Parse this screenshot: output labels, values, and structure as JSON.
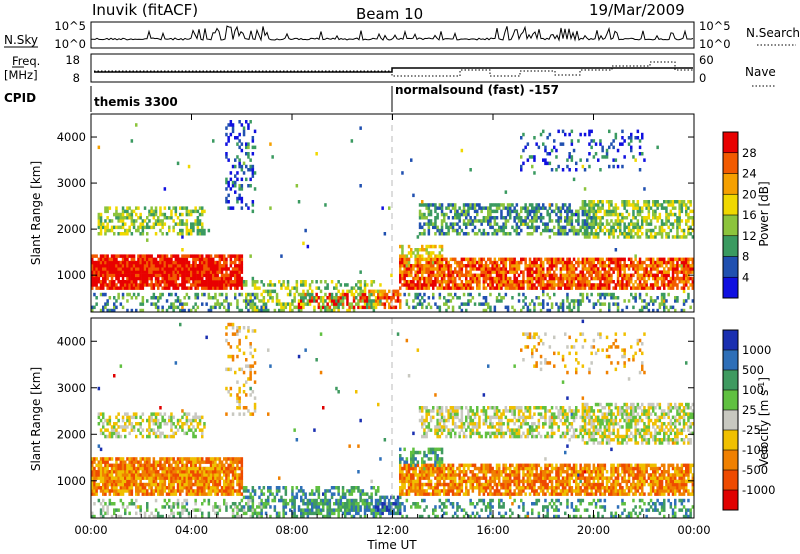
{
  "header": {
    "station": "Inuvik (fitACF)",
    "beam": "Beam 10",
    "date": "19/Mar/2009"
  },
  "noise_panel": {
    "left_label": "N.Sky",
    "left_ticks": [
      "10^5",
      "10^0"
    ],
    "right_ticks": [
      "10^5",
      "10^0"
    ],
    "right_label": "N.Search"
  },
  "freq_panel": {
    "left_label_1": "Freq.",
    "left_label_2": "[MHz]",
    "left_ticks": [
      "18",
      "8"
    ],
    "right_ticks": [
      "60",
      "0"
    ],
    "right_label": "Nave"
  },
  "cpid": {
    "label": "CPID",
    "program_1": "themis 3300",
    "program_2": "normalsound (fast) -157"
  },
  "chart_data": [
    {
      "type": "heatmap",
      "quantity": "Power",
      "ylabel": "Slant Range [km]",
      "ylim": [
        200,
        4500
      ],
      "yticks": [
        "4000",
        "3000",
        "2000",
        "1000"
      ],
      "colorbar_label": "Power [dB]",
      "colorbar_ticks": [
        "28",
        "24",
        "20",
        "16",
        "12",
        "8",
        "4"
      ],
      "colorbar_colors": [
        "#e80000",
        "#f25a00",
        "#f5a000",
        "#f0d800",
        "#8cc43c",
        "#3a9a60",
        "#2050b0",
        "#1010e0"
      ]
    },
    {
      "type": "heatmap",
      "quantity": "Velocity",
      "ylabel": "Slant Range [km]",
      "ylim": [
        200,
        4500
      ],
      "yticks": [
        "4000",
        "3000",
        "2000",
        "1000"
      ],
      "colorbar_label": "Velocity [m s",
      "colorbar_label_sup": "-1",
      "colorbar_label_end": "]",
      "colorbar_ticks": [
        "1000",
        "500",
        "100",
        "25",
        "-25",
        "-100",
        "-500",
        "-1000"
      ],
      "colorbar_colors": [
        "#1a2fb0",
        "#2e6fb8",
        "#3f9a60",
        "#60c040",
        "#c8c8c0",
        "#f0c000",
        "#f08000",
        "#ee4a00",
        "#e00000"
      ]
    }
  ],
  "time_axis": {
    "xlabel": "Time UT",
    "ticks": [
      "00:00",
      "04:00",
      "08:00",
      "12:00",
      "16:00",
      "20:00",
      "00:00"
    ]
  }
}
